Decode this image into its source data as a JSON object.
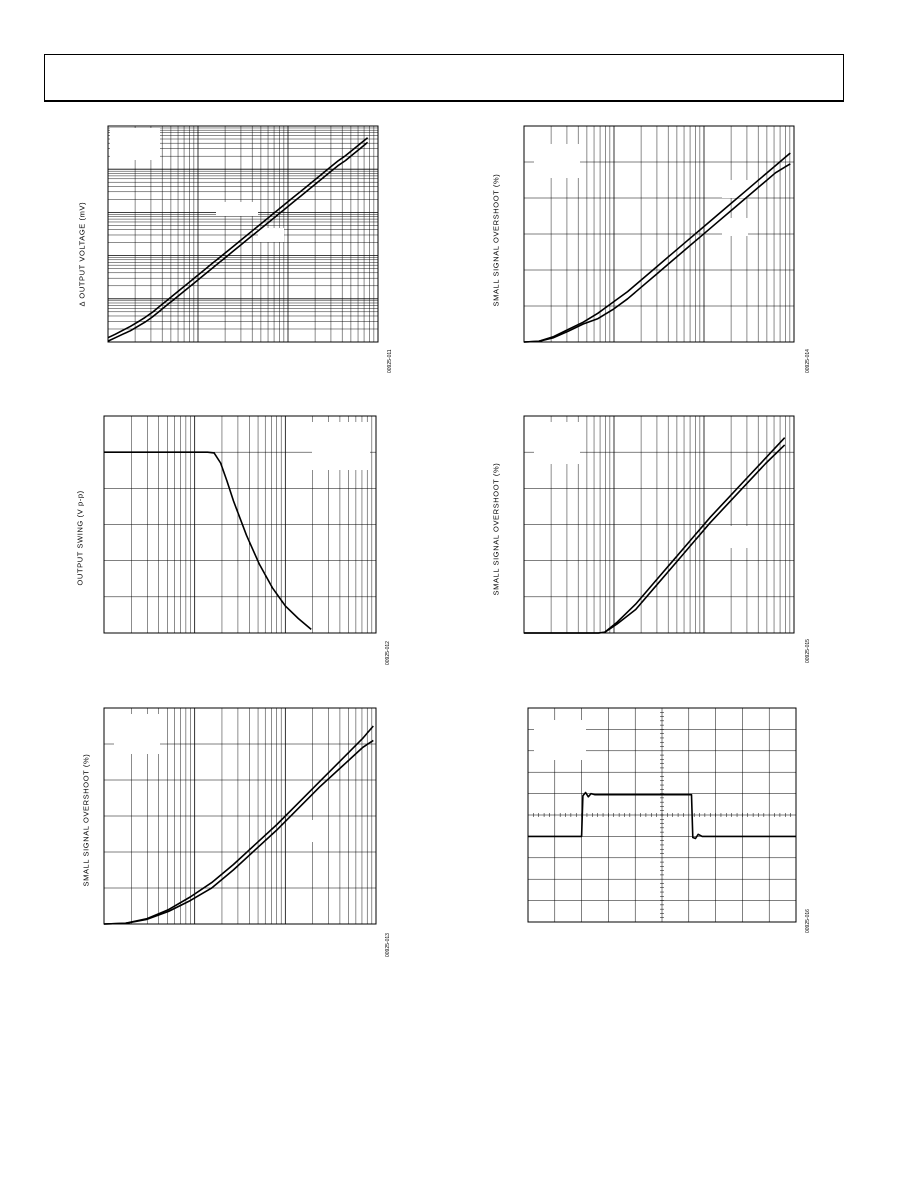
{
  "header": {},
  "figures": [
    {
      "id": "fig11",
      "ylabel": "Δ OUTPUT VOLTAGE (mV)",
      "code": "00925-011"
    },
    {
      "id": "fig14",
      "ylabel": "SMALL SIGNAL OVERSHOOT (%)",
      "code": "00925-014"
    },
    {
      "id": "fig12",
      "ylabel": "OUTPUT SWING (V p-p)",
      "code": "00925-012"
    },
    {
      "id": "fig15",
      "ylabel": "SMALL SIGNAL OVERSHOOT (%)",
      "code": "00925-015"
    },
    {
      "id": "fig13",
      "ylabel": "SMALL SIGNAL OVERSHOOT (%)",
      "code": "00925-013"
    },
    {
      "id": "fig16",
      "ylabel": "",
      "code": "00925-016"
    }
  ],
  "chart_data": [
    {
      "type": "line",
      "id": "fig11",
      "title": "",
      "xlabel": "",
      "ylabel": "Δ OUTPUT VOLTAGE (mV)",
      "xscale": "log",
      "yscale": "log",
      "x_decades": 3,
      "y_decades": 5,
      "series": [
        {
          "values": [
            [
              0.0,
              0.02
            ],
            [
              0.25,
              0.1
            ],
            [
              0.5,
              0.18
            ],
            [
              0.75,
              0.26
            ],
            [
              1.0,
              0.36
            ],
            [
              1.25,
              0.46
            ],
            [
              1.5,
              0.58
            ],
            [
              1.75,
              0.72
            ],
            [
              2.0,
              0.86
            ],
            [
              2.25,
              1.0
            ],
            [
              2.5,
              1.14
            ],
            [
              2.75,
              1.28
            ],
            [
              3.0,
              1.42
            ],
            [
              3.25,
              1.56
            ],
            [
              3.5,
              1.7
            ],
            [
              3.75,
              1.84
            ],
            [
              4.0,
              1.98
            ],
            [
              4.25,
              2.12
            ],
            [
              4.5,
              2.26
            ],
            [
              4.75,
              2.4
            ],
            [
              5.0,
              2.54
            ],
            [
              5.25,
              2.68
            ],
            [
              5.5,
              2.82
            ],
            [
              5.75,
              2.96
            ],
            [
              6.0,
              3.1
            ],
            [
              6.25,
              3.24
            ],
            [
              6.5,
              3.38
            ],
            [
              6.75,
              3.52
            ],
            [
              7.0,
              3.66
            ],
            [
              7.25,
              3.8
            ],
            [
              7.5,
              3.94
            ],
            [
              7.75,
              4.08
            ],
            [
              8.0,
              4.2
            ],
            [
              8.25,
              4.34
            ],
            [
              8.5,
              4.48
            ],
            [
              8.75,
              4.62
            ]
          ]
        },
        {
          "values": [
            [
              0.0,
              0.1
            ],
            [
              0.25,
              0.18
            ],
            [
              0.5,
              0.27
            ],
            [
              0.75,
              0.36
            ],
            [
              1.0,
              0.46
            ],
            [
              1.25,
              0.57
            ],
            [
              1.5,
              0.69
            ],
            [
              1.75,
              0.83
            ],
            [
              2.0,
              0.97
            ],
            [
              2.25,
              1.11
            ],
            [
              2.5,
              1.25
            ],
            [
              2.75,
              1.39
            ],
            [
              3.0,
              1.53
            ],
            [
              3.25,
              1.67
            ],
            [
              3.5,
              1.81
            ],
            [
              3.75,
              1.95
            ],
            [
              4.0,
              2.09
            ],
            [
              4.25,
              2.23
            ],
            [
              4.5,
              2.37
            ],
            [
              4.75,
              2.51
            ],
            [
              5.0,
              2.65
            ],
            [
              5.25,
              2.79
            ],
            [
              5.5,
              2.93
            ],
            [
              5.75,
              3.07
            ],
            [
              6.0,
              3.21
            ],
            [
              6.25,
              3.35
            ],
            [
              6.5,
              3.49
            ],
            [
              6.75,
              3.63
            ],
            [
              7.0,
              3.77
            ],
            [
              7.25,
              3.91
            ],
            [
              7.5,
              4.05
            ],
            [
              7.75,
              4.19
            ],
            [
              8.0,
              4.31
            ],
            [
              8.25,
              4.45
            ],
            [
              8.5,
              4.59
            ],
            [
              8.75,
              4.73
            ]
          ]
        }
      ]
    },
    {
      "type": "line",
      "id": "fig14",
      "title": "",
      "xlabel": "",
      "ylabel": "SMALL SIGNAL OVERSHOOT (%)",
      "xscale": "log",
      "yscale": "linear",
      "x_decades": 3,
      "y_divisions": 6,
      "series": [
        {
          "values": [
            [
              0.0,
              0.0
            ],
            [
              0.4,
              0.02
            ],
            [
              0.8,
              0.15
            ],
            [
              1.2,
              0.35
            ],
            [
              1.6,
              0.55
            ],
            [
              2.0,
              0.8
            ],
            [
              2.4,
              1.1
            ],
            [
              2.8,
              1.4
            ],
            [
              3.2,
              1.75
            ],
            [
              3.6,
              2.1
            ],
            [
              4.0,
              2.45
            ],
            [
              4.4,
              2.8
            ],
            [
              4.8,
              3.15
            ],
            [
              5.2,
              3.5
            ],
            [
              5.6,
              3.85
            ],
            [
              6.0,
              4.2
            ],
            [
              6.4,
              4.55
            ],
            [
              6.8,
              4.9
            ],
            [
              7.2,
              5.25
            ]
          ]
        },
        {
          "values": [
            [
              0.0,
              0.0
            ],
            [
              0.4,
              0.02
            ],
            [
              0.8,
              0.12
            ],
            [
              1.2,
              0.3
            ],
            [
              1.6,
              0.5
            ],
            [
              2.0,
              0.65
            ],
            [
              2.4,
              0.9
            ],
            [
              2.8,
              1.2
            ],
            [
              3.2,
              1.55
            ],
            [
              3.6,
              1.9
            ],
            [
              4.0,
              2.25
            ],
            [
              4.4,
              2.6
            ],
            [
              4.8,
              2.95
            ],
            [
              5.2,
              3.3
            ],
            [
              5.6,
              3.65
            ],
            [
              6.0,
              4.0
            ],
            [
              6.4,
              4.35
            ],
            [
              6.8,
              4.7
            ],
            [
              7.2,
              4.95
            ]
          ]
        }
      ]
    },
    {
      "type": "line",
      "id": "fig12",
      "title": "",
      "xlabel": "",
      "ylabel": "OUTPUT SWING (V p-p)",
      "xscale": "log",
      "yscale": "linear",
      "x_decades": 3,
      "y_divisions": 6,
      "series": [
        {
          "values": [
            [
              0.0,
              5.0
            ],
            [
              0.4,
              5.0
            ],
            [
              0.8,
              5.0
            ],
            [
              1.2,
              5.0
            ],
            [
              1.6,
              5.0
            ],
            [
              1.7,
              4.98
            ],
            [
              1.8,
              4.7
            ],
            [
              1.9,
              4.2
            ],
            [
              2.0,
              3.65
            ],
            [
              2.2,
              2.7
            ],
            [
              2.4,
              1.9
            ],
            [
              2.6,
              1.25
            ],
            [
              2.8,
              0.75
            ],
            [
              3.0,
              0.4
            ],
            [
              3.2,
              0.1
            ]
          ]
        }
      ]
    },
    {
      "type": "line",
      "id": "fig15",
      "title": "",
      "xlabel": "",
      "ylabel": "SMALL SIGNAL OVERSHOOT (%)",
      "xscale": "log",
      "yscale": "linear",
      "x_decades": 3,
      "y_divisions": 6,
      "series": [
        {
          "values": [
            [
              0.0,
              0.0
            ],
            [
              0.6,
              0.0
            ],
            [
              1.2,
              0.0
            ],
            [
              1.3,
              0.02
            ],
            [
              1.5,
              0.3
            ],
            [
              1.8,
              0.8
            ],
            [
              2.1,
              1.4
            ],
            [
              2.4,
              2.0
            ],
            [
              2.7,
              2.6
            ],
            [
              3.0,
              3.2
            ],
            [
              3.3,
              3.75
            ],
            [
              3.6,
              4.3
            ],
            [
              3.9,
              4.85
            ],
            [
              4.2,
              5.4
            ]
          ]
        },
        {
          "values": [
            [
              0.0,
              0.0
            ],
            [
              0.6,
              0.0
            ],
            [
              1.2,
              0.0
            ],
            [
              1.3,
              0.02
            ],
            [
              1.5,
              0.25
            ],
            [
              1.8,
              0.65
            ],
            [
              2.1,
              1.25
            ],
            [
              2.4,
              1.85
            ],
            [
              2.7,
              2.45
            ],
            [
              3.0,
              3.05
            ],
            [
              3.3,
              3.6
            ],
            [
              3.6,
              4.15
            ],
            [
              3.9,
              4.7
            ],
            [
              4.2,
              5.2
            ]
          ]
        }
      ]
    },
    {
      "type": "line",
      "id": "fig13",
      "title": "",
      "xlabel": "",
      "ylabel": "SMALL SIGNAL OVERSHOOT (%)",
      "xscale": "log",
      "yscale": "linear",
      "x_decades": 3,
      "y_divisions": 6,
      "series": [
        {
          "values": [
            [
              0.0,
              0.0
            ],
            [
              0.4,
              0.02
            ],
            [
              0.8,
              0.15
            ],
            [
              1.2,
              0.4
            ],
            [
              1.6,
              0.75
            ],
            [
              2.0,
              1.15
            ],
            [
              2.4,
              1.65
            ],
            [
              2.8,
              2.2
            ],
            [
              3.2,
              2.75
            ],
            [
              3.6,
              3.35
            ],
            [
              4.0,
              3.95
            ],
            [
              4.4,
              4.55
            ],
            [
              4.8,
              5.15
            ],
            [
              5.0,
              5.5
            ]
          ]
        },
        {
          "values": [
            [
              0.0,
              0.0
            ],
            [
              0.4,
              0.02
            ],
            [
              0.8,
              0.13
            ],
            [
              1.2,
              0.35
            ],
            [
              1.6,
              0.65
            ],
            [
              2.0,
              1.0
            ],
            [
              2.4,
              1.5
            ],
            [
              2.8,
              2.05
            ],
            [
              3.2,
              2.6
            ],
            [
              3.6,
              3.2
            ],
            [
              4.0,
              3.8
            ],
            [
              4.4,
              4.35
            ],
            [
              4.8,
              4.9
            ],
            [
              5.0,
              5.1
            ]
          ]
        }
      ]
    },
    {
      "type": "line",
      "id": "fig16",
      "title": "",
      "xlabel": "",
      "ylabel": "",
      "xscale": "linear",
      "yscale": "linear",
      "x_divisions": 10,
      "y_divisions": 10,
      "series": [
        {
          "values": [
            [
              0.0,
              4.0
            ],
            [
              2.0,
              4.0
            ],
            [
              2.05,
              5.9
            ],
            [
              2.15,
              6.05
            ],
            [
              2.25,
              5.85
            ],
            [
              2.35,
              6.0
            ],
            [
              2.5,
              5.95
            ],
            [
              5.0,
              5.95
            ],
            [
              6.1,
              5.95
            ],
            [
              6.15,
              3.95
            ],
            [
              6.25,
              3.9
            ],
            [
              6.35,
              4.1
            ],
            [
              6.5,
              4.0
            ],
            [
              10.0,
              4.0
            ]
          ]
        }
      ]
    }
  ]
}
